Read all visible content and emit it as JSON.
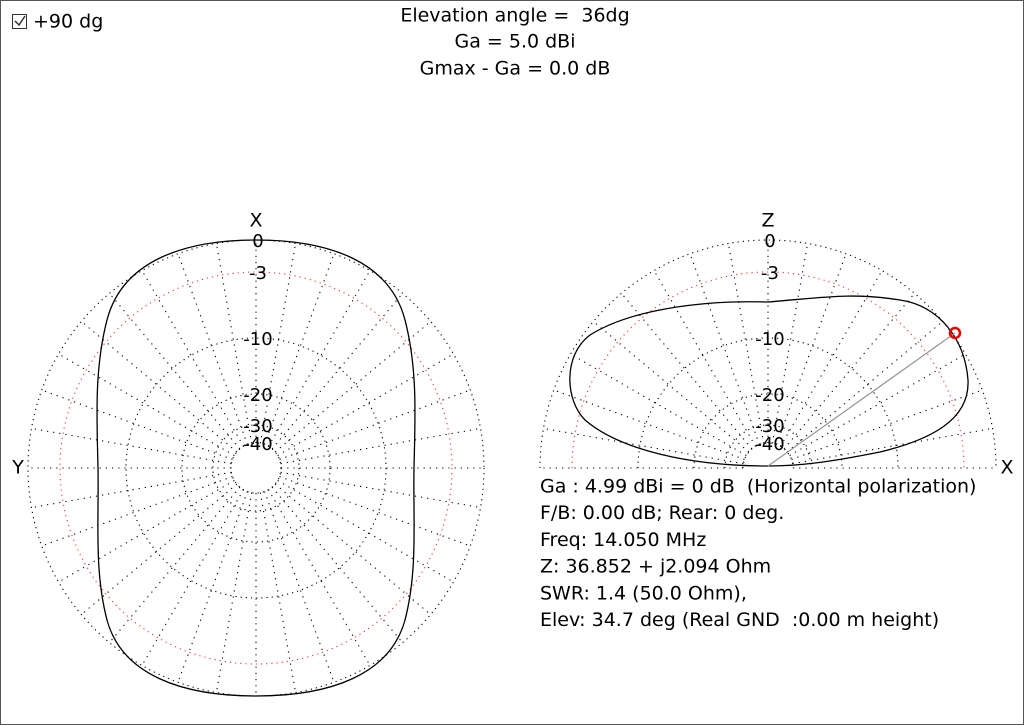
{
  "checkbox": {
    "label": "+90 dg",
    "checked": true
  },
  "header": {
    "lines": [
      "Elevation angle =  36dg",
      "Ga = 5.0 dBi",
      "Gmax - Ga = 0.0 dB"
    ]
  },
  "azimuth_plot": {
    "top_label": "X",
    "left_label": "Y",
    "ring_labels": [
      "0",
      "-3",
      "-10",
      "-20",
      "-30",
      "-40"
    ]
  },
  "elevation_plot": {
    "top_label": "Z",
    "right_label": "X",
    "ring_labels": [
      "0",
      "-3",
      "-10",
      "-20",
      "-30",
      "-40"
    ]
  },
  "info": {
    "lines": [
      "Ga : 4.99 dBi = 0 dB  (Horizontal polarization)",
      "F/B: 0.00 dB; Rear: 0 deg.",
      "Freq: 14.050 MHz",
      "Z: 36.852 + j2.094 Ohm",
      "SWR: 1.4 (50.0 Ohm),",
      "Elev: 34.7 deg (Real GND  :0.00 m height)"
    ]
  }
}
